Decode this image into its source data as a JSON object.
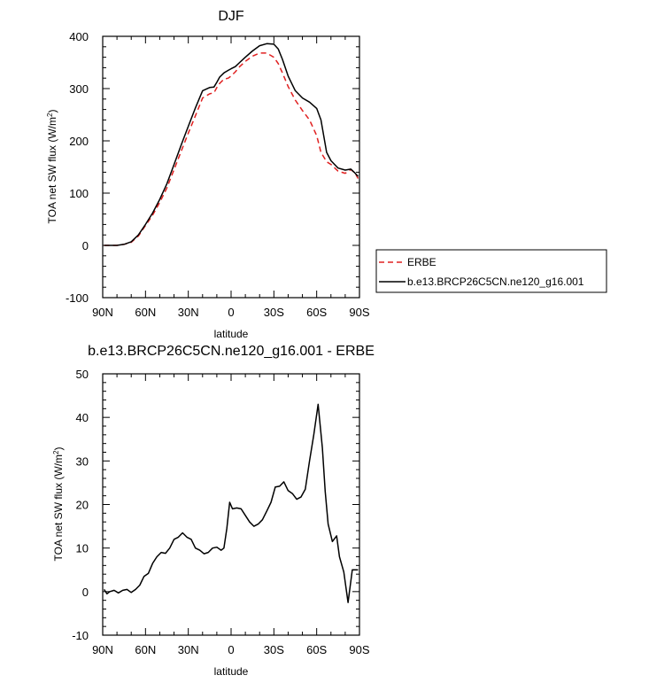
{
  "chart_data": [
    {
      "type": "line",
      "title": "DJF",
      "xlabel": "latitude",
      "ylabel": "TOA net SW flux (W/m²)",
      "xlim": [
        90,
        -90
      ],
      "ylim": [
        -100,
        400
      ],
      "xticks": [
        90,
        60,
        30,
        0,
        -30,
        -60,
        -90
      ],
      "xtick_labels": [
        "90N",
        "60N",
        "30N",
        "0",
        "30S",
        "60S",
        "90S"
      ],
      "yticks": [
        -100,
        0,
        100,
        200,
        300,
        400
      ],
      "ytick_labels": [
        "-100",
        "0",
        "100",
        "200",
        "300",
        "400"
      ],
      "grid": false,
      "legend": "right",
      "series": [
        {
          "name": "ERBE",
          "color": "#e02020",
          "dash": "dashed",
          "x": [
            89,
            85,
            80,
            75,
            70,
            65,
            60,
            55,
            50,
            45,
            40,
            35,
            30,
            25,
            20,
            15,
            12,
            10,
            8,
            5,
            2,
            0,
            -3,
            -6,
            -10,
            -15,
            -20,
            -25,
            -30,
            -33,
            -36,
            -40,
            -45,
            -50,
            -55,
            -60,
            -63,
            -67,
            -70,
            -75,
            -80,
            -84,
            -87,
            -89
          ],
          "values": [
            0,
            0,
            0,
            2,
            6,
            18,
            38,
            58,
            82,
            110,
            145,
            180,
            215,
            248,
            282,
            290,
            292,
            302,
            310,
            318,
            320,
            324,
            332,
            342,
            352,
            362,
            368,
            368,
            360,
            348,
            330,
            304,
            278,
            258,
            240,
            210,
            178,
            160,
            155,
            142,
            138,
            145,
            138,
            128
          ]
        },
        {
          "name": "b.e13.BRCP26C5CN.ne120_g16.001",
          "color": "#000000",
          "dash": "solid",
          "x": [
            89,
            85,
            80,
            75,
            70,
            65,
            60,
            55,
            50,
            45,
            40,
            35,
            30,
            25,
            20,
            15,
            12,
            10,
            8,
            5,
            2,
            0,
            -3,
            -6,
            -10,
            -15,
            -20,
            -25,
            -30,
            -33,
            -36,
            -40,
            -45,
            -50,
            -55,
            -60,
            -63,
            -67,
            -70,
            -75,
            -80,
            -84,
            -87,
            -89
          ],
          "values": [
            0,
            0,
            0,
            2,
            7,
            20,
            40,
            62,
            88,
            118,
            155,
            192,
            228,
            263,
            296,
            302,
            303,
            312,
            322,
            330,
            335,
            338,
            342,
            350,
            360,
            372,
            382,
            386,
            385,
            376,
            356,
            324,
            296,
            282,
            274,
            262,
            240,
            178,
            162,
            148,
            144,
            146,
            138,
            132
          ]
        }
      ]
    },
    {
      "type": "line",
      "title": "b.e13.BRCP26C5CN.ne120_g16.001 - ERBE",
      "xlabel": "latitude",
      "ylabel": "TOA net SW flux (W/m²)",
      "xlim": [
        90,
        -90
      ],
      "ylim": [
        -10,
        50
      ],
      "xticks": [
        90,
        60,
        30,
        0,
        -30,
        -60,
        -90
      ],
      "xtick_labels": [
        "90N",
        "60N",
        "30N",
        "0",
        "30S",
        "60S",
        "90S"
      ],
      "yticks": [
        -10,
        0,
        10,
        20,
        30,
        40,
        50
      ],
      "ytick_labels": [
        "-10",
        "0",
        "10",
        "20",
        "30",
        "40",
        "50"
      ],
      "grid": false,
      "series": [
        {
          "color": "#000000",
          "dash": "solid",
          "x": [
            89,
            87,
            85,
            82,
            79,
            76,
            73,
            70,
            67,
            64,
            61,
            58,
            55,
            52,
            49,
            46,
            43,
            40,
            37,
            34,
            31,
            28,
            25,
            22,
            19,
            16,
            13,
            10,
            7,
            5,
            3,
            1,
            -1,
            -4,
            -7,
            -10,
            -13,
            -16,
            -19,
            -22,
            -25,
            -28,
            -31,
            -34,
            -37,
            -40,
            -43,
            -46,
            -49,
            -52,
            -55,
            -58,
            -61,
            -64,
            -66,
            -68,
            -71,
            -74,
            -76,
            -79,
            -82,
            -85,
            -87,
            -89
          ],
          "values": [
            0.5,
            -0.5,
            0,
            0.3,
            -0.3,
            0.3,
            0.5,
            -0.2,
            0.5,
            1.5,
            3.5,
            4.2,
            6.5,
            8.0,
            9.0,
            8.8,
            10.0,
            12.0,
            12.5,
            13.5,
            12.5,
            12.0,
            10.0,
            9.5,
            8.7,
            9.0,
            10.0,
            10.2,
            9.5,
            10.0,
            14.5,
            20.5,
            19.0,
            19.2,
            19.0,
            17.5,
            16.0,
            15.0,
            15.5,
            16.5,
            18.5,
            20.5,
            24.0,
            24.2,
            25.2,
            23.2,
            22.5,
            21.2,
            21.7,
            23.5,
            30.0,
            36.0,
            43.0,
            33.0,
            23.0,
            15.5,
            11.5,
            12.8,
            8.0,
            4.5,
            -2.5,
            5.0,
            5.0,
            5.0
          ]
        }
      ]
    }
  ]
}
